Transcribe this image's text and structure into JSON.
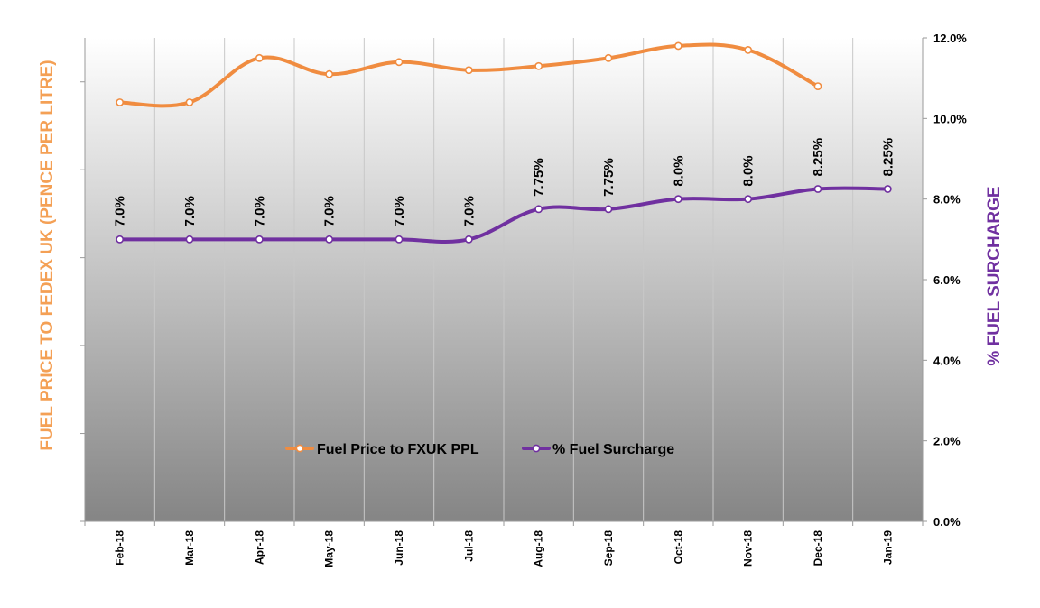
{
  "chart_data": {
    "type": "line",
    "categories": [
      "Feb-18",
      "Mar-18",
      "Apr-18",
      "May-18",
      "Jun-18",
      "Jul-18",
      "Aug-18",
      "Sep-18",
      "Oct-18",
      "Nov-18",
      "Dec-18",
      "Jan-19"
    ],
    "left_axis": {
      "label": "FUEL PRICE TO FEDEX  UK (PENCE PER LITRE)",
      "color": "#f4a055",
      "tick_labels_shown": false
    },
    "right_axis": {
      "label": "% FUEL SURCHARGE",
      "color": "#7030a0",
      "ylim": [
        0,
        12
      ],
      "ticks": [
        0,
        2,
        4,
        6,
        8,
        10,
        12
      ],
      "tick_labels": [
        "0.0%",
        "2.0%",
        "4.0%",
        "6.0%",
        "8.0%",
        "10.0%",
        "12.0%"
      ]
    },
    "grid": {
      "vertical": true,
      "horizontal": false
    },
    "legend_position": "bottom-center",
    "series": [
      {
        "name": "Fuel Price to FXUK PPL",
        "axis": "left",
        "color": "#f08c40",
        "right_axis_equivalent_values": [
          10.4,
          10.4,
          11.5,
          11.1,
          11.4,
          11.2,
          11.3,
          11.5,
          11.8,
          11.7,
          10.8,
          null
        ]
      },
      {
        "name": "% Fuel Surcharge",
        "axis": "right",
        "color": "#7030a0",
        "values": [
          7.0,
          7.0,
          7.0,
          7.0,
          7.0,
          7.0,
          7.75,
          7.75,
          8.0,
          8.0,
          8.25,
          8.25
        ],
        "data_labels": [
          "7.0%",
          "7.0%",
          "7.0%",
          "7.0%",
          "7.0%",
          "7.0%",
          "7.75%",
          "7.75%",
          "8.0%",
          "8.0%",
          "8.25%",
          "8.25%"
        ]
      }
    ]
  }
}
